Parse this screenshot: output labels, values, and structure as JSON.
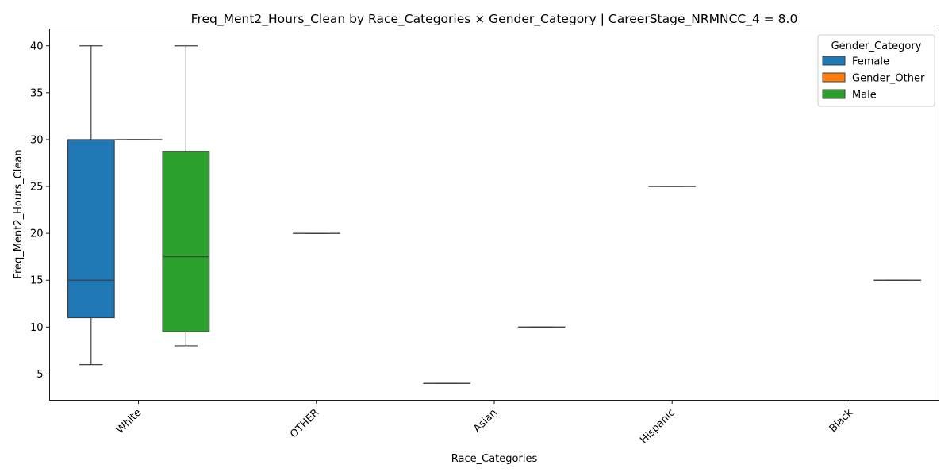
{
  "chart_data": {
    "type": "box",
    "title": "Freq_Ment2_Hours_Clean by Race_Categories × Gender_Category | CareerStage_NRMNCC_4 = 8.0",
    "xlabel": "Race_Categories",
    "ylabel": "Freq_Ment2_Hours_Clean",
    "categories": [
      "White",
      "OTHER",
      "Asian",
      "Hispanic",
      "Black"
    ],
    "ylim": [
      2.2,
      41.8
    ],
    "yticks": [
      5,
      10,
      15,
      20,
      25,
      30,
      35,
      40
    ],
    "grid": false,
    "legend": {
      "title": "Gender_Category",
      "placement": "top-right",
      "entries": [
        "Female",
        "Gender_Other",
        "Male"
      ]
    },
    "series": [
      {
        "name": "Female",
        "color": "#1f77b4",
        "boxes": [
          {
            "category": "White",
            "whisker_low": 6,
            "q1": 11,
            "median": 15,
            "q3": 30,
            "whisker_high": 40
          },
          {
            "category": "Asian",
            "whisker_low": 4,
            "q1": 4,
            "median": 4,
            "q3": 4,
            "whisker_high": 4
          }
        ]
      },
      {
        "name": "Gender_Other",
        "color": "#ff7f0e",
        "boxes": [
          {
            "category": "White",
            "whisker_low": 30,
            "q1": 30,
            "median": 30,
            "q3": 30,
            "whisker_high": 30
          },
          {
            "category": "OTHER",
            "whisker_low": 20,
            "q1": 20,
            "median": 20,
            "q3": 20,
            "whisker_high": 20
          },
          {
            "category": "Hispanic",
            "whisker_low": 25,
            "q1": 25,
            "median": 25,
            "q3": 25,
            "whisker_high": 25
          }
        ]
      },
      {
        "name": "Male",
        "color": "#2ca02c",
        "boxes": [
          {
            "category": "White",
            "whisker_low": 8,
            "q1": 9.5,
            "median": 17.5,
            "q3": 28.75,
            "whisker_high": 40
          },
          {
            "category": "Asian",
            "whisker_low": 10,
            "q1": 10,
            "median": 10,
            "q3": 10,
            "whisker_high": 10
          },
          {
            "category": "Black",
            "whisker_low": 15,
            "q1": 15,
            "median": 15,
            "q3": 15,
            "whisker_high": 15
          }
        ]
      }
    ]
  }
}
